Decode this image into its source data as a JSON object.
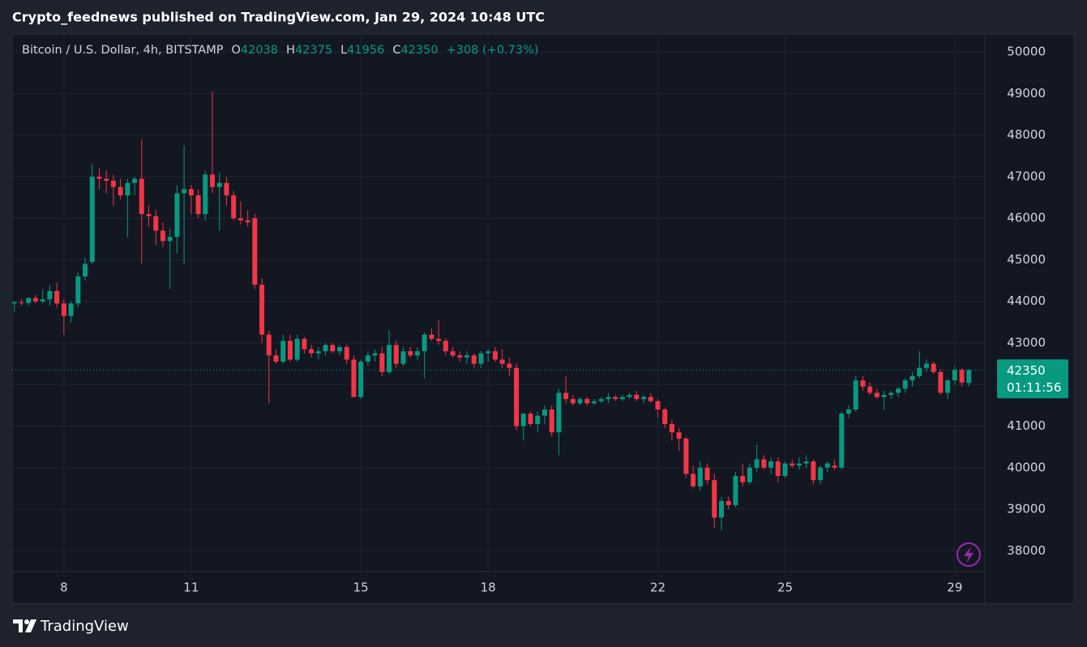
{
  "header": "Crypto_feednews published on TradingView.com, Jan 29, 2024 10:48 UTC",
  "footer_brand": "TradingView",
  "chart_data": {
    "type": "candlestick",
    "symbol": "Bitcoin / U.S. Dollar, 4h, BITSTAMP",
    "ohlc_labels": [
      "O",
      "H",
      "L",
      "C"
    ],
    "change": {
      "value": 308,
      "label": "+308"
    },
    "change_pct": {
      "value": 0.73,
      "label": "(+0.73%)"
    },
    "countdown": "01:11:56",
    "up_color": "#089981",
    "down_color": "#f23645",
    "grid": true,
    "xlim": [
      6.78,
      29.71
    ],
    "ylim": [
      37500,
      50430
    ],
    "xticks": [
      8,
      11,
      15,
      18,
      22,
      25,
      29
    ],
    "yticks": [
      38000,
      39000,
      40000,
      41000,
      42000,
      43000,
      44000,
      45000,
      46000,
      47000,
      48000,
      49000,
      50000
    ],
    "x": [
      6.833,
      7,
      7.167,
      7.333,
      7.5,
      7.667,
      7.833,
      8,
      8.167,
      8.333,
      8.5,
      8.667,
      8.833,
      9,
      9.167,
      9.333,
      9.5,
      9.667,
      9.833,
      10,
      10.167,
      10.333,
      10.5,
      10.667,
      10.833,
      11,
      11.167,
      11.333,
      11.5,
      11.667,
      11.833,
      12,
      12.167,
      12.333,
      12.5,
      12.667,
      12.833,
      13,
      13.167,
      13.333,
      13.5,
      13.667,
      13.833,
      14,
      14.167,
      14.333,
      14.5,
      14.667,
      14.833,
      15,
      15.167,
      15.333,
      15.5,
      15.667,
      15.833,
      16,
      16.167,
      16.333,
      16.5,
      16.667,
      16.833,
      17,
      17.167,
      17.333,
      17.5,
      17.667,
      17.833,
      18,
      18.167,
      18.333,
      18.5,
      18.667,
      18.833,
      19,
      19.167,
      19.333,
      19.5,
      19.667,
      19.833,
      20,
      20.167,
      20.333,
      20.5,
      20.667,
      20.833,
      21,
      21.167,
      21.333,
      21.5,
      21.667,
      21.833,
      22,
      22.167,
      22.333,
      22.5,
      22.667,
      22.833,
      23,
      23.167,
      23.333,
      23.5,
      23.667,
      23.833,
      24,
      24.167,
      24.333,
      24.5,
      24.667,
      24.833,
      25,
      25.167,
      25.333,
      25.5,
      25.667,
      25.833,
      26,
      26.167,
      26.333,
      26.5,
      26.667,
      26.833,
      27,
      27.167,
      27.333,
      27.5,
      27.667,
      27.833,
      28,
      28.167,
      28.333,
      28.5,
      28.667,
      28.833,
      29,
      29.167,
      29.333
    ],
    "ohlc": [
      [
        43950,
        44000,
        43750,
        43980
      ],
      [
        43980,
        44050,
        43900,
        43960
      ],
      [
        43960,
        44100,
        43900,
        44080
      ],
      [
        44080,
        44150,
        43950,
        44000
      ],
      [
        44000,
        44300,
        43950,
        44050
      ],
      [
        44050,
        44400,
        43900,
        44250
      ],
      [
        44250,
        44450,
        43850,
        43950
      ],
      [
        43950,
        44050,
        43200,
        43650
      ],
      [
        43650,
        44000,
        43500,
        43950
      ],
      [
        43950,
        44700,
        43850,
        44600
      ],
      [
        44600,
        45050,
        44500,
        44900
      ],
      [
        44950,
        47300,
        44900,
        47000
      ],
      [
        47000,
        47200,
        46700,
        46950
      ],
      [
        46950,
        47150,
        46600,
        46900
      ],
      [
        46900,
        47050,
        46300,
        46750
      ],
      [
        46750,
        46950,
        46450,
        46550
      ],
      [
        46550,
        46950,
        45550,
        46850
      ],
      [
        46850,
        47000,
        46550,
        46950
      ],
      [
        46950,
        47900,
        44900,
        46100
      ],
      [
        46100,
        46300,
        45800,
        46050
      ],
      [
        46050,
        46200,
        45350,
        45700
      ],
      [
        45700,
        45900,
        45300,
        45450
      ],
      [
        45450,
        45750,
        44300,
        45550
      ],
      [
        45550,
        46800,
        45150,
        46600
      ],
      [
        46600,
        47750,
        44900,
        46700
      ],
      [
        46700,
        46800,
        46100,
        46550
      ],
      [
        46550,
        46700,
        46000,
        46100
      ],
      [
        46100,
        47150,
        45950,
        47050
      ],
      [
        47050,
        49050,
        46600,
        46750
      ],
      [
        46750,
        47100,
        45700,
        46850
      ],
      [
        46850,
        47000,
        46300,
        46550
      ],
      [
        46550,
        46650,
        45950,
        46000
      ],
      [
        46000,
        46400,
        45850,
        45950
      ],
      [
        45950,
        46200,
        45800,
        45900
      ],
      [
        46000,
        46100,
        44300,
        44400
      ],
      [
        44400,
        44550,
        43000,
        43200
      ],
      [
        43200,
        43300,
        41550,
        42700
      ],
      [
        42700,
        42850,
        42500,
        42550
      ],
      [
        42550,
        43200,
        42500,
        43050
      ],
      [
        43050,
        43200,
        42550,
        42600
      ],
      [
        42600,
        43200,
        42550,
        43100
      ],
      [
        43100,
        43150,
        42750,
        42850
      ],
      [
        42850,
        42950,
        42650,
        42750
      ],
      [
        42750,
        42900,
        42600,
        42800
      ],
      [
        42800,
        43000,
        42700,
        42950
      ],
      [
        42950,
        43000,
        42750,
        42800
      ],
      [
        42800,
        42950,
        42700,
        42900
      ],
      [
        42900,
        42950,
        42500,
        42600
      ],
      [
        42600,
        42700,
        41700,
        41700
      ],
      [
        41700,
        42600,
        41650,
        42550
      ],
      [
        42550,
        42800,
        42450,
        42700
      ],
      [
        42700,
        42850,
        42550,
        42750
      ],
      [
        42750,
        42900,
        42200,
        42300
      ],
      [
        42300,
        43300,
        42250,
        42950
      ],
      [
        42950,
        43050,
        42400,
        42500
      ],
      [
        42500,
        42900,
        42450,
        42800
      ],
      [
        42800,
        42900,
        42650,
        42700
      ],
      [
        42700,
        42900,
        42600,
        42800
      ],
      [
        42800,
        43250,
        42150,
        43200
      ],
      [
        43200,
        43350,
        43050,
        43100
      ],
      [
        43100,
        43550,
        42950,
        43050
      ],
      [
        43050,
        43100,
        42700,
        42800
      ],
      [
        42800,
        42900,
        42650,
        42700
      ],
      [
        42700,
        42800,
        42550,
        42650
      ],
      [
        42650,
        42800,
        42500,
        42700
      ],
      [
        42700,
        42750,
        42400,
        42500
      ],
      [
        42500,
        42800,
        42400,
        42750
      ],
      [
        42750,
        42850,
        42550,
        42800
      ],
      [
        42800,
        42900,
        42550,
        42600
      ],
      [
        42600,
        42850,
        42400,
        42500
      ],
      [
        42500,
        42650,
        42200,
        42400
      ],
      [
        42400,
        42500,
        40900,
        41000
      ],
      [
        41000,
        41300,
        40650,
        41300
      ],
      [
        41300,
        41350,
        41000,
        41050
      ],
      [
        41050,
        41350,
        40850,
        41250
      ],
      [
        41250,
        41500,
        41050,
        41400
      ],
      [
        41400,
        41500,
        40750,
        40850
      ],
      [
        40850,
        41900,
        40300,
        41800
      ],
      [
        41800,
        42200,
        41550,
        41650
      ],
      [
        41650,
        41750,
        41500,
        41550
      ],
      [
        41550,
        41700,
        41500,
        41650
      ],
      [
        41650,
        41700,
        41500,
        41550
      ],
      [
        41550,
        41650,
        41500,
        41600
      ],
      [
        41600,
        41700,
        41550,
        41650
      ],
      [
        41650,
        41800,
        41550,
        41700
      ],
      [
        41700,
        41750,
        41600,
        41650
      ],
      [
        41650,
        41750,
        41600,
        41700
      ],
      [
        41700,
        41800,
        41650,
        41750
      ],
      [
        41750,
        41850,
        41600,
        41650
      ],
      [
        41650,
        41750,
        41550,
        41700
      ],
      [
        41700,
        41800,
        41550,
        41600
      ],
      [
        41600,
        41650,
        41200,
        41400
      ],
      [
        41400,
        41450,
        40950,
        41050
      ],
      [
        41050,
        41150,
        40650,
        40850
      ],
      [
        40850,
        40950,
        40400,
        40700
      ],
      [
        40700,
        40750,
        39750,
        39850
      ],
      [
        39850,
        40050,
        39500,
        39550
      ],
      [
        39550,
        40150,
        39450,
        40000
      ],
      [
        40000,
        40100,
        39600,
        39700
      ],
      [
        39700,
        39850,
        38550,
        38800
      ],
      [
        38800,
        39300,
        38500,
        39200
      ],
      [
        39200,
        39300,
        39000,
        39100
      ],
      [
        39100,
        39900,
        39050,
        39800
      ],
      [
        39800,
        40100,
        39550,
        39650
      ],
      [
        39650,
        40100,
        39600,
        40000
      ],
      [
        40000,
        40550,
        39900,
        40200
      ],
      [
        40200,
        40300,
        39950,
        40000
      ],
      [
        40000,
        40250,
        39850,
        40150
      ],
      [
        40150,
        40250,
        39650,
        39800
      ],
      [
        39800,
        40150,
        39750,
        40100
      ],
      [
        40100,
        40200,
        40000,
        40050
      ],
      [
        40050,
        40250,
        39950,
        40100
      ],
      [
        40100,
        40300,
        40000,
        40150
      ],
      [
        40150,
        40200,
        39600,
        39700
      ],
      [
        39700,
        40050,
        39600,
        40000
      ],
      [
        40000,
        40150,
        39900,
        40100
      ],
      [
        40050,
        40200,
        39950,
        40000
      ],
      [
        40000,
        41350,
        39950,
        41300
      ],
      [
        41300,
        41500,
        41200,
        41400
      ],
      [
        41400,
        42200,
        41350,
        42100
      ],
      [
        42100,
        42200,
        41850,
        41950
      ],
      [
        41950,
        42050,
        41750,
        41800
      ],
      [
        41800,
        41900,
        41650,
        41700
      ],
      [
        41700,
        41850,
        41400,
        41750
      ],
      [
        41750,
        41850,
        41650,
        41800
      ],
      [
        41800,
        41950,
        41700,
        41900
      ],
      [
        41900,
        42150,
        41800,
        42100
      ],
      [
        42100,
        42300,
        41950,
        42200
      ],
      [
        42200,
        42800,
        42150,
        42400
      ],
      [
        42400,
        42600,
        42300,
        42500
      ],
      [
        42500,
        42550,
        42250,
        42300
      ],
      [
        42300,
        42350,
        41750,
        41800
      ],
      [
        41800,
        42150,
        41650,
        42100
      ],
      [
        42100,
        42450,
        42000,
        42350
      ],
      [
        42350,
        42400,
        41950,
        42050
      ],
      [
        42038,
        42375,
        41956,
        42350
      ]
    ]
  }
}
